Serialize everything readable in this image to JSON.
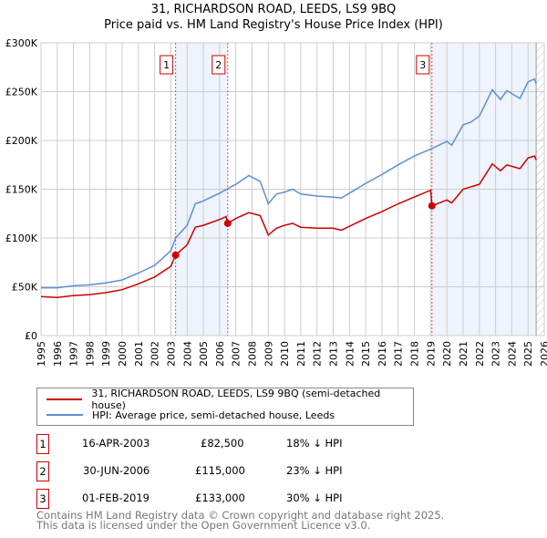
{
  "chart_data": {
    "type": "line",
    "title": "31, RICHARDSON ROAD, LEEDS, LS9 9BQ",
    "subtitle": "Price paid vs. HM Land Registry's House Price Index (HPI)",
    "xlim": [
      1995,
      2026
    ],
    "ylim": [
      0,
      300000
    ],
    "yticks": [
      {
        "v": 0,
        "label": "£0"
      },
      {
        "v": 50000,
        "label": "£50K"
      },
      {
        "v": 100000,
        "label": "£100K"
      },
      {
        "v": 150000,
        "label": "£150K"
      },
      {
        "v": 200000,
        "label": "£200K"
      },
      {
        "v": 250000,
        "label": "£250K"
      },
      {
        "v": 300000,
        "label": "£300K"
      }
    ],
    "xticks": [
      "1995",
      "1996",
      "1997",
      "1998",
      "1999",
      "2000",
      "2001",
      "2002",
      "2003",
      "2004",
      "2005",
      "2006",
      "2007",
      "2008",
      "2009",
      "2010",
      "2011",
      "2012",
      "2013",
      "2014",
      "2015",
      "2016",
      "2017",
      "2018",
      "2019",
      "2020",
      "2021",
      "2022",
      "2023",
      "2024",
      "2025",
      "2026"
    ],
    "grid": true,
    "shaded": [
      [
        2003.29,
        2006.5
      ],
      [
        2019.08,
        2025.5
      ]
    ],
    "hatch_from": 2025.5,
    "series": [
      {
        "name": "31, RICHARDSON ROAD, LEEDS, LS9 9BQ (semi-detached house)",
        "color": "#cc0000",
        "x": [
          1995,
          1996,
          1997,
          1998,
          1999,
          2000,
          2001,
          2002,
          2003,
          2003.29,
          2004,
          2004.5,
          2005,
          2006,
          2006.4,
          2006.5,
          2007,
          2007.8,
          2008.5,
          2009,
          2009.5,
          2010,
          2010.5,
          2011,
          2012,
          2013,
          2013.5,
          2014,
          2015,
          2016,
          2017,
          2018,
          2019.0,
          2019.08,
          2020,
          2020.3,
          2021,
          2022,
          2022.8,
          2023.3,
          2023.7,
          2024.5,
          2025,
          2025.4,
          2025.5
        ],
        "y": [
          40,
          39,
          41,
          42,
          44,
          47,
          53,
          60,
          71,
          82.5,
          93,
          111,
          113,
          119,
          122,
          115,
          120,
          126,
          123,
          103,
          110,
          113,
          115,
          111,
          110,
          110,
          108,
          112,
          120,
          127,
          135,
          142,
          149,
          133,
          139,
          136,
          150,
          155,
          176,
          169,
          175,
          171,
          182,
          184,
          180
        ]
      },
      {
        "name": "HPI: Average price, semi-detached house, Leeds",
        "color": "#5b8fd4",
        "x": [
          1995,
          1996,
          1997,
          1998,
          1999,
          2000,
          2001,
          2002,
          2003,
          2003.29,
          2004,
          2004.5,
          2005,
          2006,
          2007,
          2007.8,
          2008.5,
          2009,
          2009.5,
          2010,
          2010.5,
          2011,
          2012,
          2013,
          2013.5,
          2014,
          2015,
          2016,
          2017,
          2018,
          2019,
          2020,
          2020.3,
          2021,
          2021.5,
          2022,
          2022.8,
          2023.3,
          2023.7,
          2024.5,
          2025,
          2025.4,
          2025.5
        ],
        "y": [
          49,
          49,
          51,
          52,
          54,
          57,
          64,
          72,
          87,
          100,
          113,
          135,
          138,
          146,
          155,
          164,
          158,
          135,
          145,
          147,
          150,
          145,
          143,
          142,
          141,
          146,
          156,
          165,
          175,
          184,
          191,
          199,
          195,
          216,
          219,
          225,
          252,
          242,
          251,
          243,
          260,
          263,
          258
        ]
      }
    ],
    "y_unit": "thousands GBP",
    "sales": [
      {
        "n": "1",
        "date": "16-APR-2003",
        "x": 2003.29,
        "price": "£82,500",
        "y": 82.5,
        "hpi": "18% ↓ HPI"
      },
      {
        "n": "2",
        "date": "30-JUN-2006",
        "x": 2006.5,
        "price": "£115,000",
        "y": 115,
        "hpi": "23% ↓ HPI"
      },
      {
        "n": "3",
        "date": "01-FEB-2019",
        "x": 2019.08,
        "price": "£133,000",
        "y": 133,
        "hpi": "30% ↓ HPI"
      }
    ]
  },
  "footer": {
    "line1": "Contains HM Land Registry data © Crown copyright and database right 2025.",
    "line2": "This data is licensed under the Open Government Licence v3.0."
  }
}
